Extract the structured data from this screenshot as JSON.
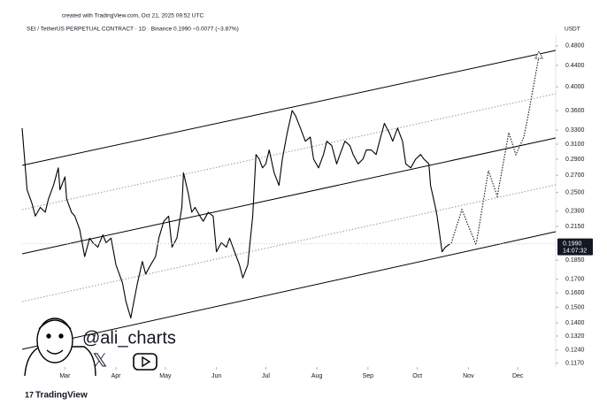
{
  "credit": "created with TradingView.com, Oct 21, 2025 09:52 UTC",
  "brand": "TradingView",
  "watermark": "@ali_charts",
  "chart_data": {
    "type": "line",
    "title": "SEI / TetherUS PERPETUAL CONTRACT · 1D · Binance  0.1990  −0.0077 (−3.87%)",
    "y_unit": "USDT",
    "log_scale": true,
    "color": "#000000",
    "x": [
      34,
      37,
      40,
      42,
      45,
      48,
      50,
      53,
      56,
      57,
      60,
      61,
      64,
      66,
      69,
      72,
      75,
      77,
      80,
      83,
      85,
      88,
      91,
      93,
      95,
      97,
      100,
      101,
      104,
      107,
      109,
      112,
      115,
      117,
      120,
      123,
      125,
      128,
      131,
      132,
      135,
      137,
      139,
      142,
      144,
      147,
      150,
      152,
      155,
      158,
      160,
      163,
      166,
      168,
      171,
      174,
      176,
      178,
      180,
      182,
      184,
      187,
      190,
      192,
      195,
      198,
      200,
      203,
      206,
      209,
      211,
      214,
      217,
      219,
      222,
      225,
      227,
      230,
      233,
      235,
      238,
      241,
      243,
      246,
      249,
      251,
      254,
      257,
      259,
      262,
      265,
      267,
      270,
      273,
      276,
      278,
      281,
      282,
      285,
      286,
      289,
      291,
      293,
      294
    ],
    "values": [
      0.333,
      0.253,
      0.238,
      0.225,
      0.234,
      0.229,
      0.243,
      0.258,
      0.279,
      0.253,
      0.268,
      0.243,
      0.229,
      0.225,
      0.212,
      0.188,
      0.204,
      0.2,
      0.196,
      0.207,
      0.2,
      0.204,
      0.181,
      0.174,
      0.167,
      0.154,
      0.143,
      0.149,
      0.167,
      0.184,
      0.174,
      0.181,
      0.188,
      0.204,
      0.22,
      0.225,
      0.196,
      0.204,
      0.234,
      0.273,
      0.248,
      0.229,
      0.234,
      0.225,
      0.22,
      0.229,
      0.225,
      0.192,
      0.2,
      0.196,
      0.204,
      0.192,
      0.181,
      0.171,
      0.181,
      0.225,
      0.296,
      0.29,
      0.279,
      0.284,
      0.302,
      0.273,
      0.258,
      0.29,
      0.326,
      0.36,
      0.352,
      0.333,
      0.314,
      0.32,
      0.29,
      0.279,
      0.296,
      0.314,
      0.308,
      0.284,
      0.296,
      0.314,
      0.308,
      0.296,
      0.284,
      0.29,
      0.302,
      0.302,
      0.296,
      0.314,
      0.34,
      0.326,
      0.314,
      0.333,
      0.314,
      0.284,
      0.279,
      0.29,
      0.296,
      0.29,
      0.284,
      0.258,
      0.234,
      0.225,
      0.192,
      0.196,
      0.198,
      0.199
    ],
    "xlim": [
      34,
      358
    ],
    "xticks": [
      {
        "value": 60,
        "label": "Mar"
      },
      {
        "value": 91,
        "label": "Apr"
      },
      {
        "value": 121,
        "label": "May"
      },
      {
        "value": 152,
        "label": "Jun"
      },
      {
        "value": 182,
        "label": "Jul"
      },
      {
        "value": 213,
        "label": "Aug"
      },
      {
        "value": 244,
        "label": "Sep"
      },
      {
        "value": 274,
        "label": "Oct"
      },
      {
        "value": 305,
        "label": "Nov"
      },
      {
        "value": 335,
        "label": "Dec"
      }
    ],
    "ylim": [
      0.115,
      0.503
    ],
    "yticks": [
      {
        "value": 0.48,
        "label": "0.4800"
      },
      {
        "value": 0.44,
        "label": "0.4400"
      },
      {
        "value": 0.4,
        "label": "0.4000"
      },
      {
        "value": 0.36,
        "label": "0.3600"
      },
      {
        "value": 0.33,
        "label": "0.3300"
      },
      {
        "value": 0.31,
        "label": "0.3100"
      },
      {
        "value": 0.29,
        "label": "0.2900"
      },
      {
        "value": 0.27,
        "label": "0.2700"
      },
      {
        "value": 0.25,
        "label": "0.2500"
      },
      {
        "value": 0.23,
        "label": "0.2300"
      },
      {
        "value": 0.215,
        "label": "0.2150"
      },
      {
        "value": 0.185,
        "label": "0.1850"
      },
      {
        "value": 0.17,
        "label": "0.1700"
      },
      {
        "value": 0.16,
        "label": "0.1600"
      },
      {
        "value": 0.15,
        "label": "0.1500"
      },
      {
        "value": 0.14,
        "label": "0.1400"
      },
      {
        "value": 0.132,
        "label": "0.1320"
      },
      {
        "value": 0.124,
        "label": "0.1240"
      },
      {
        "value": 0.117,
        "label": "0.1170"
      }
    ],
    "last_price": {
      "value": 0.199,
      "label": "0.1990"
    },
    "countdown": "14:07:32"
  }
}
